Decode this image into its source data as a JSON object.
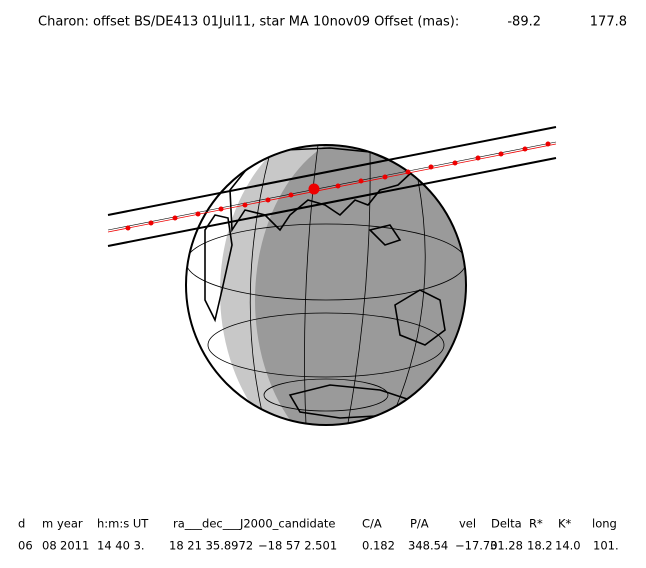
{
  "header": {
    "title": "Charon: offset BS/DE413 01Jul11, star MA 10nov09  Offset (mas):",
    "offsets": [
      "-89.2",
      "177.8"
    ]
  },
  "table": {
    "columns": [
      "d",
      "m",
      "year",
      "h:m:s UT",
      "ra___dec___J2000_candidate",
      "C/A",
      "P/A",
      "vel",
      "Delta",
      "R*",
      "K*",
      "long"
    ],
    "rows": [
      [
        "06",
        "08",
        "2011",
        "14 40  3.",
        "18 21 35.8972",
        "−18 57  2.501",
        "0.182",
        "348.54",
        "−17.70",
        "31.28",
        "18.2",
        "14.0",
        "101."
      ]
    ]
  }
}
